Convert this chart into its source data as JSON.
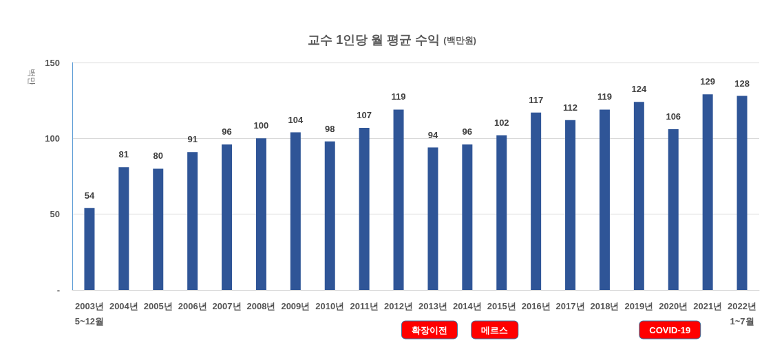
{
  "chart_data": {
    "type": "bar",
    "title": "교수 1인당 월 평균 수익",
    "subtitle": "(백만원)",
    "ylabel": "백만",
    "categories": [
      "2003년\n5~12월",
      "2004년",
      "2005년",
      "2006년",
      "2007년",
      "2008년",
      "2009년",
      "2010년",
      "2011년",
      "2012년",
      "2013년",
      "2014년",
      "2015년",
      "2016년",
      "2017년",
      "2018년",
      "2019년",
      "2020년",
      "2021년",
      "2022년\n1~7월"
    ],
    "values": [
      54,
      81,
      80,
      91,
      96,
      100,
      104,
      98,
      107,
      119,
      94,
      96,
      102,
      117,
      112,
      119,
      124,
      106,
      129,
      128
    ],
    "color": "#2f5597",
    "data_labels": true,
    "grid": "y",
    "ylim": [
      0,
      150
    ],
    "yticks": [
      {
        "value": 0,
        "label": "-"
      },
      50,
      100,
      150
    ],
    "annotations": [
      "확장이전",
      "메르스",
      "COVID-19"
    ]
  }
}
